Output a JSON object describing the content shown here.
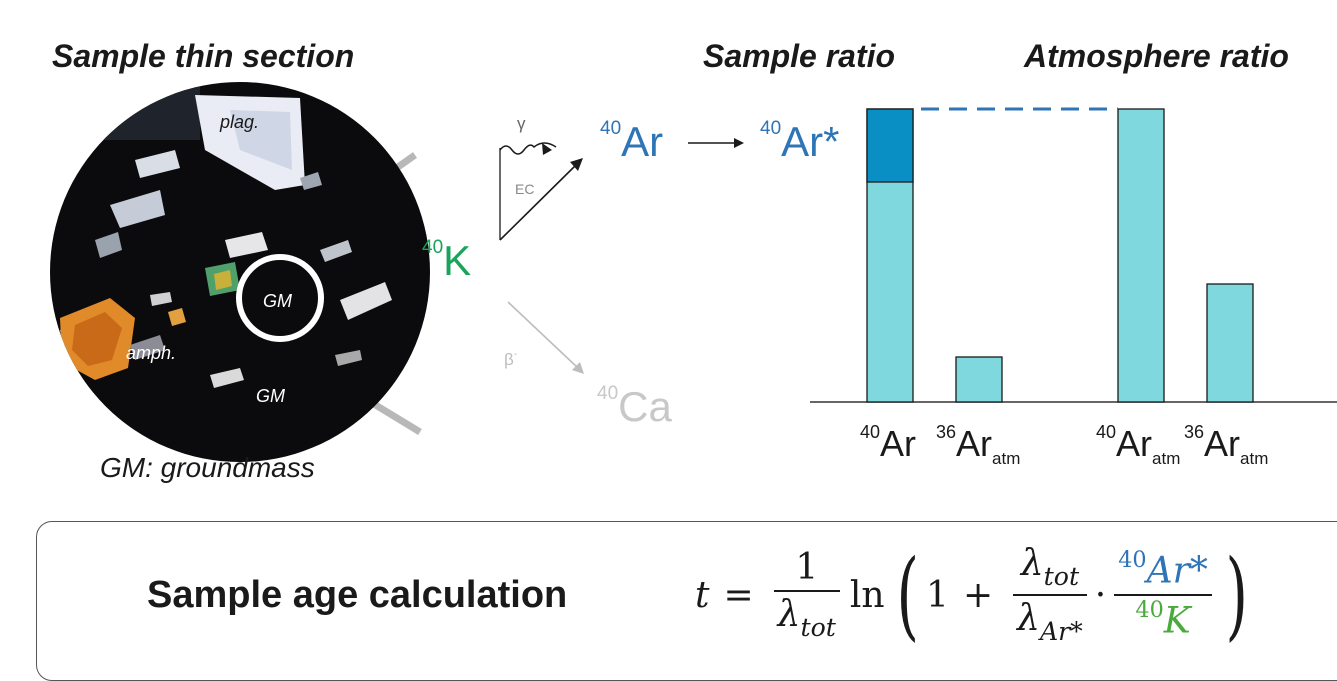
{
  "headings": {
    "left": "Sample thin section",
    "middle": "Sample ratio",
    "right": "Atmosphere ratio"
  },
  "thin_section": {
    "labels": {
      "plag": "plag.",
      "amph": "amph.",
      "gm_circle": "GM",
      "gm_lower": "GM"
    },
    "caption": "GM: groundmass"
  },
  "decay": {
    "parent": {
      "mass": "40",
      "symbol": "K",
      "color": "#1aa35a"
    },
    "gamma": "γ",
    "ec": "EC",
    "beta": "β",
    "beta_sign": "-",
    "argon": {
      "mass": "40",
      "symbol": "Ar",
      "color": "#2f74b5"
    },
    "argon_star": {
      "mass": "40",
      "symbol": "Ar*",
      "color": "#2f74b5"
    },
    "calcium": {
      "mass": "40",
      "symbol": "Ca",
      "color": "#c8c8c8"
    }
  },
  "chart_data": {
    "type": "bar",
    "categories": [
      "40Ar",
      "36Ar_atm",
      "40Ar_atm",
      "36Ar_atm"
    ],
    "groups": [
      "Sample ratio",
      "Atmosphere ratio"
    ],
    "values": [
      293,
      45,
      293,
      118
    ],
    "radiogenic_part_of_first_bar": 73,
    "bar_color": "#7fd8de",
    "radiogenic_color": "#0a8fc4",
    "tick_labels": [
      {
        "mass": "40",
        "symbol": "Ar",
        "subscript": ""
      },
      {
        "mass": "36",
        "symbol": "Ar",
        "subscript": "atm"
      },
      {
        "mass": "40",
        "symbol": "Ar",
        "subscript": "atm"
      },
      {
        "mass": "36",
        "symbol": "Ar",
        "subscript": "atm"
      }
    ],
    "reference_line": "dashed line from top of sample 40Ar bar to top of atmosphere 40Ar bar"
  },
  "formula_panel": {
    "title": "Sample age calculation",
    "t": "t",
    "equals": "=",
    "one": "1",
    "lambda_tot": "λ",
    "tot": "tot",
    "ln": "ln",
    "plus": "+",
    "one_inner": "1",
    "lambda_ar": "λ",
    "ar_star_sub": "Ar*",
    "dot": "·",
    "num_mass": "40",
    "num_symbol": "Ar*",
    "den_mass": "40",
    "den_symbol": "K",
    "num_color": "#2f74b5",
    "den_color": "#4aaa3c"
  }
}
